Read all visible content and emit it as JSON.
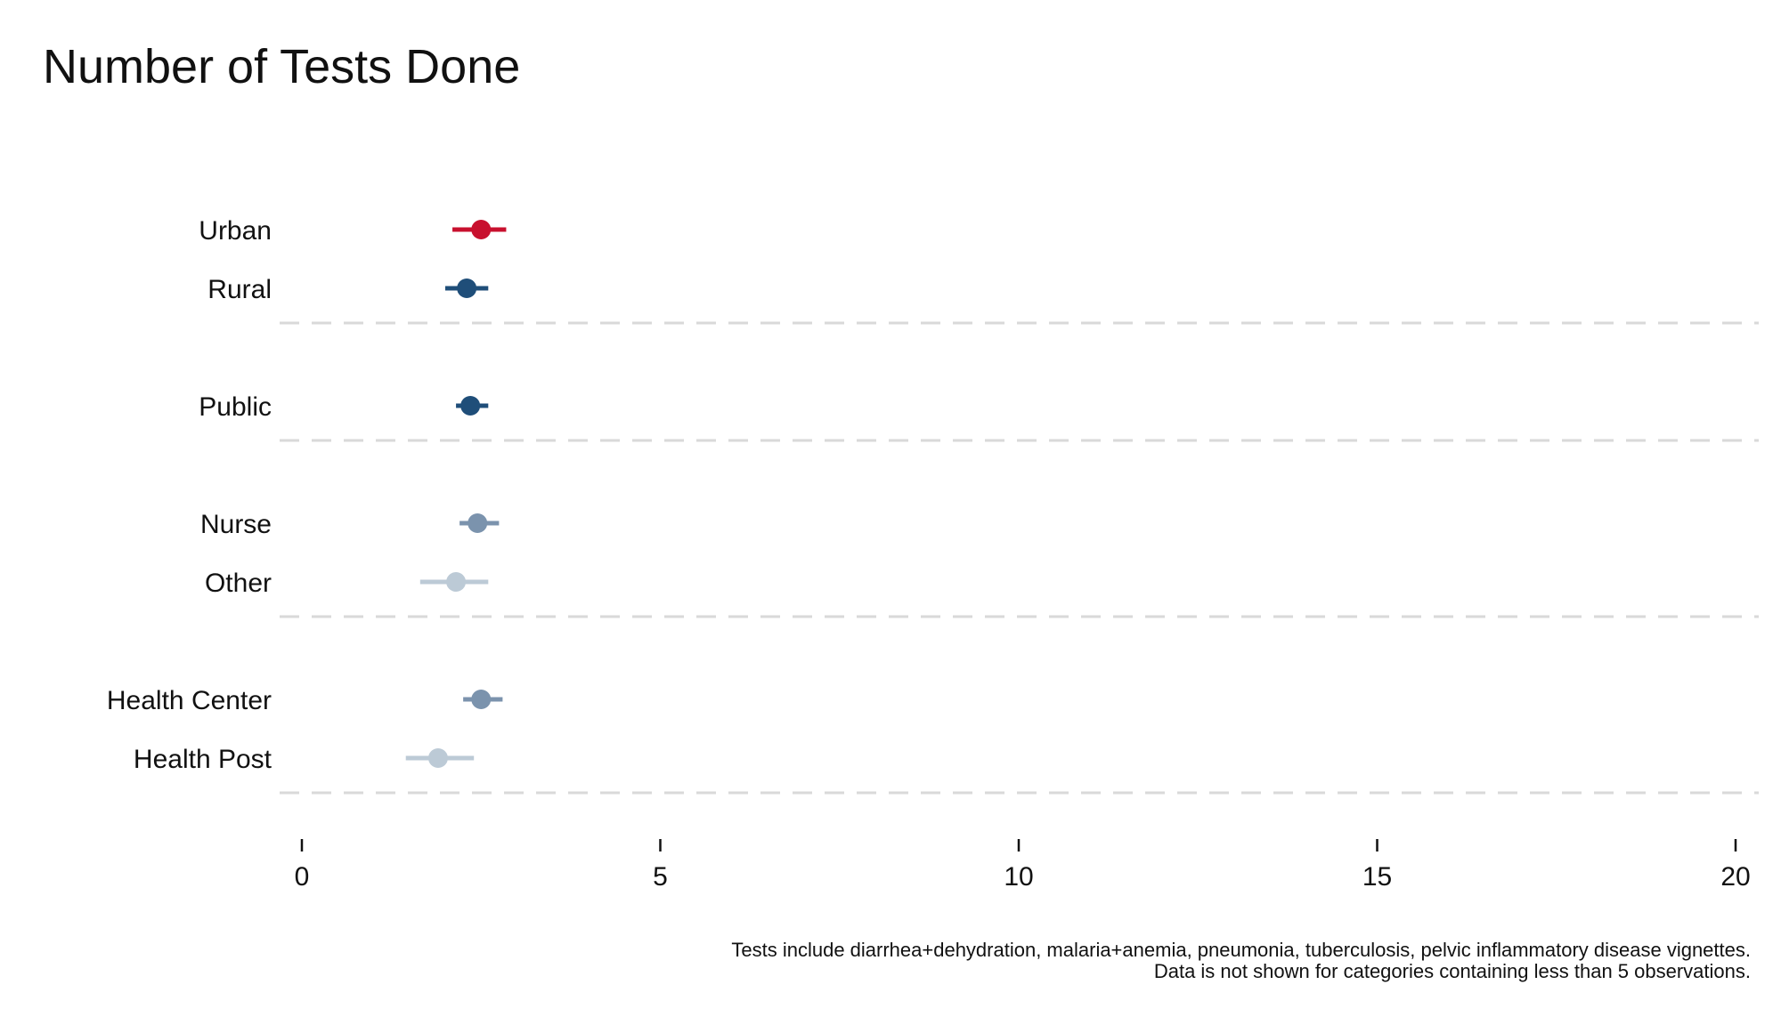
{
  "chart_data": {
    "type": "dot",
    "title": "Number of Tests Done",
    "xlabel": "",
    "ylabel": "",
    "xlim": [
      0,
      20
    ],
    "xticks": [
      0,
      5,
      10,
      15,
      20
    ],
    "grid": false,
    "groups": [
      {
        "rows": [
          {
            "label": "Urban",
            "value": 2.5,
            "ci": [
              2.1,
              2.85
            ],
            "color": "#c8102e"
          },
          {
            "label": "Rural",
            "value": 2.3,
            "ci": [
              2.0,
              2.6
            ],
            "color": "#1f4e79"
          }
        ]
      },
      {
        "rows": [
          {
            "label": "Public",
            "value": 2.35,
            "ci": [
              2.15,
              2.6
            ],
            "color": "#1f4e79"
          }
        ]
      },
      {
        "rows": [
          {
            "label": "Nurse",
            "value": 2.45,
            "ci": [
              2.2,
              2.75
            ],
            "color": "#7b93ad"
          },
          {
            "label": "Other",
            "value": 2.15,
            "ci": [
              1.65,
              2.6
            ],
            "color": "#bccad6"
          }
        ]
      },
      {
        "rows": [
          {
            "label": "Health Center",
            "value": 2.5,
            "ci": [
              2.25,
              2.8
            ],
            "color": "#7b93ad"
          },
          {
            "label": "Health Post",
            "value": 1.9,
            "ci": [
              1.45,
              2.4
            ],
            "color": "#bccad6"
          }
        ]
      }
    ],
    "notes": [
      "Tests include diarrhea+dehydration, malaria+anemia, pneumonia, tuberculosis, pelvic inflammatory disease vignettes.",
      "Data is not shown for categories containing less than 5 observations."
    ]
  }
}
